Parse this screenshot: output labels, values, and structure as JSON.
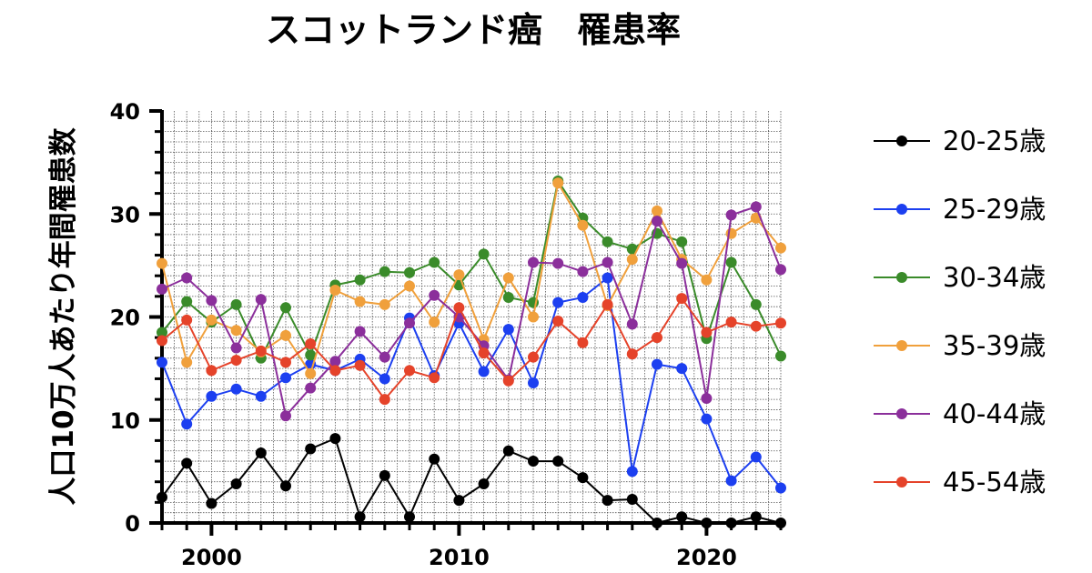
{
  "chart_data": {
    "type": "line",
    "title": "スコットランド癌　罹患率",
    "ylabel": "人口10万人あたり年間罹患数",
    "xlabel": "",
    "xlim": [
      1998,
      2023
    ],
    "ylim": [
      0,
      40
    ],
    "x_ticks": [
      2000,
      2010,
      2020
    ],
    "y_ticks": [
      0,
      10,
      20,
      30,
      40
    ],
    "grid": true,
    "legend_position": "right",
    "x": [
      1998,
      1999,
      2000,
      2001,
      2002,
      2003,
      2004,
      2005,
      2006,
      2007,
      2008,
      2009,
      2010,
      2011,
      2012,
      2013,
      2014,
      2015,
      2016,
      2017,
      2018,
      2019,
      2020,
      2021,
      2022,
      2023
    ],
    "series": [
      {
        "name": "20-25歳",
        "color": "#000000",
        "values": [
          2.5,
          5.8,
          1.9,
          3.8,
          6.8,
          3.6,
          7.2,
          8.2,
          0.6,
          4.6,
          0.6,
          6.2,
          2.2,
          3.8,
          7.0,
          6.0,
          6.0,
          4.4,
          2.2,
          2.3,
          0.0,
          0.6,
          0.0,
          0.0,
          0.6,
          0.0
        ]
      },
      {
        "name": "25-29歳",
        "color": "#1c3ff0",
        "values": [
          15.6,
          9.6,
          12.3,
          13.0,
          12.3,
          14.1,
          15.4,
          14.8,
          15.9,
          14.0,
          19.9,
          14.3,
          19.4,
          14.7,
          18.8,
          13.6,
          21.4,
          21.9,
          23.8,
          5.0,
          15.4,
          15.0,
          10.1,
          4.1,
          6.4,
          3.4
        ]
      },
      {
        "name": "30-34歳",
        "color": "#3a8b2a",
        "values": [
          18.5,
          21.5,
          19.5,
          21.2,
          16.0,
          20.9,
          16.3,
          23.1,
          23.6,
          24.4,
          24.3,
          25.3,
          23.1,
          26.1,
          21.9,
          21.4,
          33.2,
          29.6,
          27.3,
          26.6,
          28.1,
          27.3,
          17.9,
          25.3,
          21.2,
          16.2
        ]
      },
      {
        "name": "35-39歳",
        "color": "#f0a03c",
        "values": [
          25.2,
          15.6,
          19.7,
          18.7,
          16.6,
          18.2,
          14.5,
          22.6,
          21.5,
          21.2,
          23.0,
          19.5,
          24.1,
          17.8,
          23.8,
          20.0,
          33.0,
          28.9,
          21.1,
          25.6,
          30.3,
          25.6,
          23.6,
          28.1,
          29.6,
          26.7
        ]
      },
      {
        "name": "40-44歳",
        "color": "#8b2f9b",
        "values": [
          22.7,
          23.8,
          21.6,
          17.0,
          21.7,
          10.4,
          13.1,
          15.7,
          18.6,
          16.1,
          19.4,
          22.1,
          20.0,
          17.2,
          13.9,
          25.3,
          25.2,
          24.4,
          25.3,
          19.3,
          29.3,
          25.2,
          12.1,
          29.9,
          30.7,
          24.6
        ]
      },
      {
        "name": "45-54歳",
        "color": "#e5432a",
        "values": [
          17.7,
          19.7,
          14.8,
          15.8,
          16.7,
          15.6,
          17.4,
          14.8,
          15.3,
          12.0,
          14.8,
          14.1,
          20.9,
          16.5,
          13.8,
          16.1,
          19.6,
          17.5,
          21.2,
          16.4,
          18.0,
          21.8,
          18.5,
          19.5,
          19.1,
          19.4
        ]
      }
    ]
  }
}
